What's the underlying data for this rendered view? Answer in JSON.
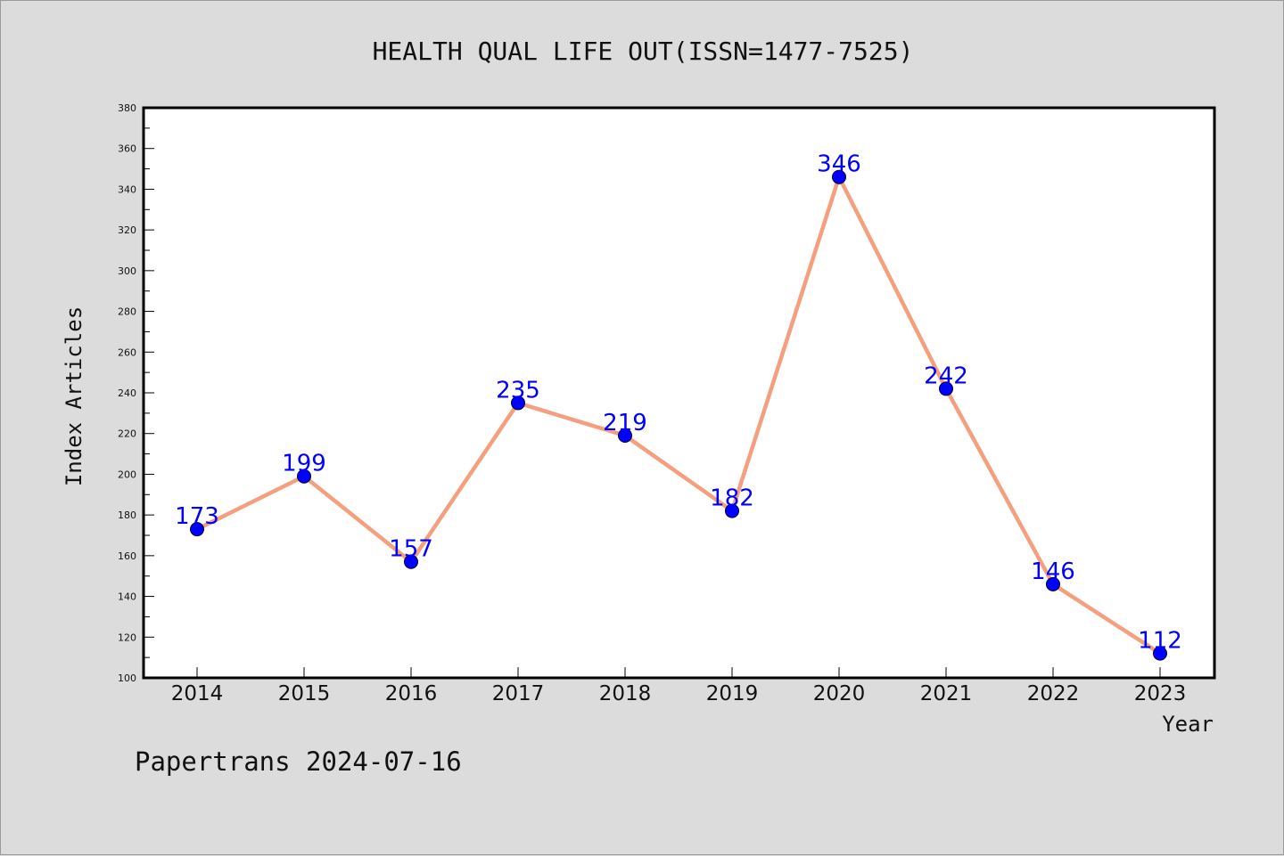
{
  "chart_data": {
    "type": "line",
    "title": "HEALTH QUAL LIFE OUT(ISSN=1477-7525)",
    "xlabel": "Year",
    "ylabel": "Index Articles",
    "categories": [
      "2014",
      "2015",
      "2016",
      "2017",
      "2018",
      "2019",
      "2020",
      "2021",
      "2022",
      "2023"
    ],
    "values": [
      173,
      199,
      157,
      235,
      219,
      182,
      346,
      242,
      146,
      112
    ],
    "ylim": [
      100,
      380
    ],
    "yticks": [
      100,
      120,
      140,
      160,
      180,
      200,
      220,
      240,
      260,
      280,
      300,
      320,
      340,
      360,
      380
    ],
    "data_labels": true,
    "grid": false,
    "legend": false
  },
  "footer": "Papertrans 2024-07-16",
  "colors": {
    "background": "#dcdcdc",
    "plot_background": "#ffffff",
    "line": "#f4a07f",
    "marker": "#0000ff",
    "label": "#0000ff",
    "axis": "#000000"
  }
}
